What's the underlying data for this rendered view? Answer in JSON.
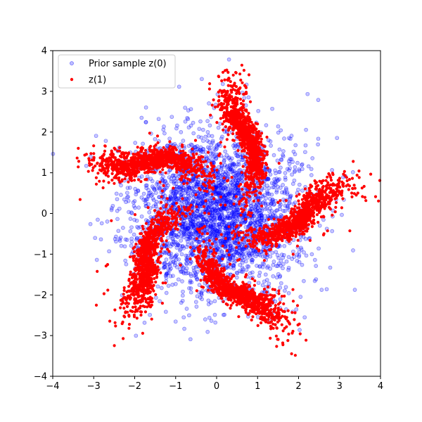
{
  "chart_data": {
    "type": "scatter",
    "title": "",
    "xlabel": "",
    "ylabel": "",
    "xlim": [
      -4,
      4
    ],
    "ylim": [
      -4,
      4
    ],
    "xticks": [
      -4,
      -3,
      -2,
      -1,
      0,
      1,
      2,
      3,
      4
    ],
    "yticks": [
      -4,
      -3,
      -2,
      -1,
      0,
      1,
      2,
      3,
      4
    ],
    "grid": false,
    "legend_position": "top-left",
    "series": [
      {
        "name": "Prior sample z(0)",
        "marker": "circle-open",
        "color": "#0000ff",
        "opacity": 0.22,
        "distribution": "gaussian",
        "center": [
          0,
          0
        ],
        "std": [
          1.0,
          1.0
        ],
        "count": 3000
      },
      {
        "name": "z(1)",
        "marker": "circle-filled",
        "color": "#ff0000",
        "distribution": "spiral-arms",
        "arm_count": 5,
        "count": 5000,
        "arm_samples": [
          {
            "arm": 1,
            "points": [
              [
                0.1,
                0.4
              ],
              [
                0.1,
                1.5
              ],
              [
                0.4,
                2.5
              ],
              [
                0.8,
                3.0
              ],
              [
                1.2,
                3.2
              ]
            ]
          },
          {
            "arm": 2,
            "points": [
              [
                0.4,
                0.2
              ],
              [
                1.5,
                0.9
              ],
              [
                2.4,
                0.8
              ],
              [
                3.0,
                0.2
              ],
              [
                3.6,
                -0.2
              ]
            ]
          },
          {
            "arm": 3,
            "points": [
              [
                0.3,
                -0.5
              ],
              [
                1.4,
                -1.2
              ],
              [
                1.6,
                -2.3
              ],
              [
                1.3,
                -2.9
              ],
              [
                0.8,
                -3.2
              ]
            ]
          },
          {
            "arm": 4,
            "points": [
              [
                -0.3,
                -0.4
              ],
              [
                -1.0,
                -1.8
              ],
              [
                -1.8,
                -2.1
              ],
              [
                -2.5,
                -1.8
              ],
              [
                -3.0,
                -1.4
              ]
            ]
          },
          {
            "arm": 5,
            "points": [
              [
                -0.4,
                0.2
              ],
              [
                -1.5,
                -0.3
              ],
              [
                -2.5,
                0.2
              ],
              [
                -2.7,
                0.9
              ],
              [
                -2.5,
                1.4
              ]
            ]
          }
        ]
      }
    ]
  }
}
